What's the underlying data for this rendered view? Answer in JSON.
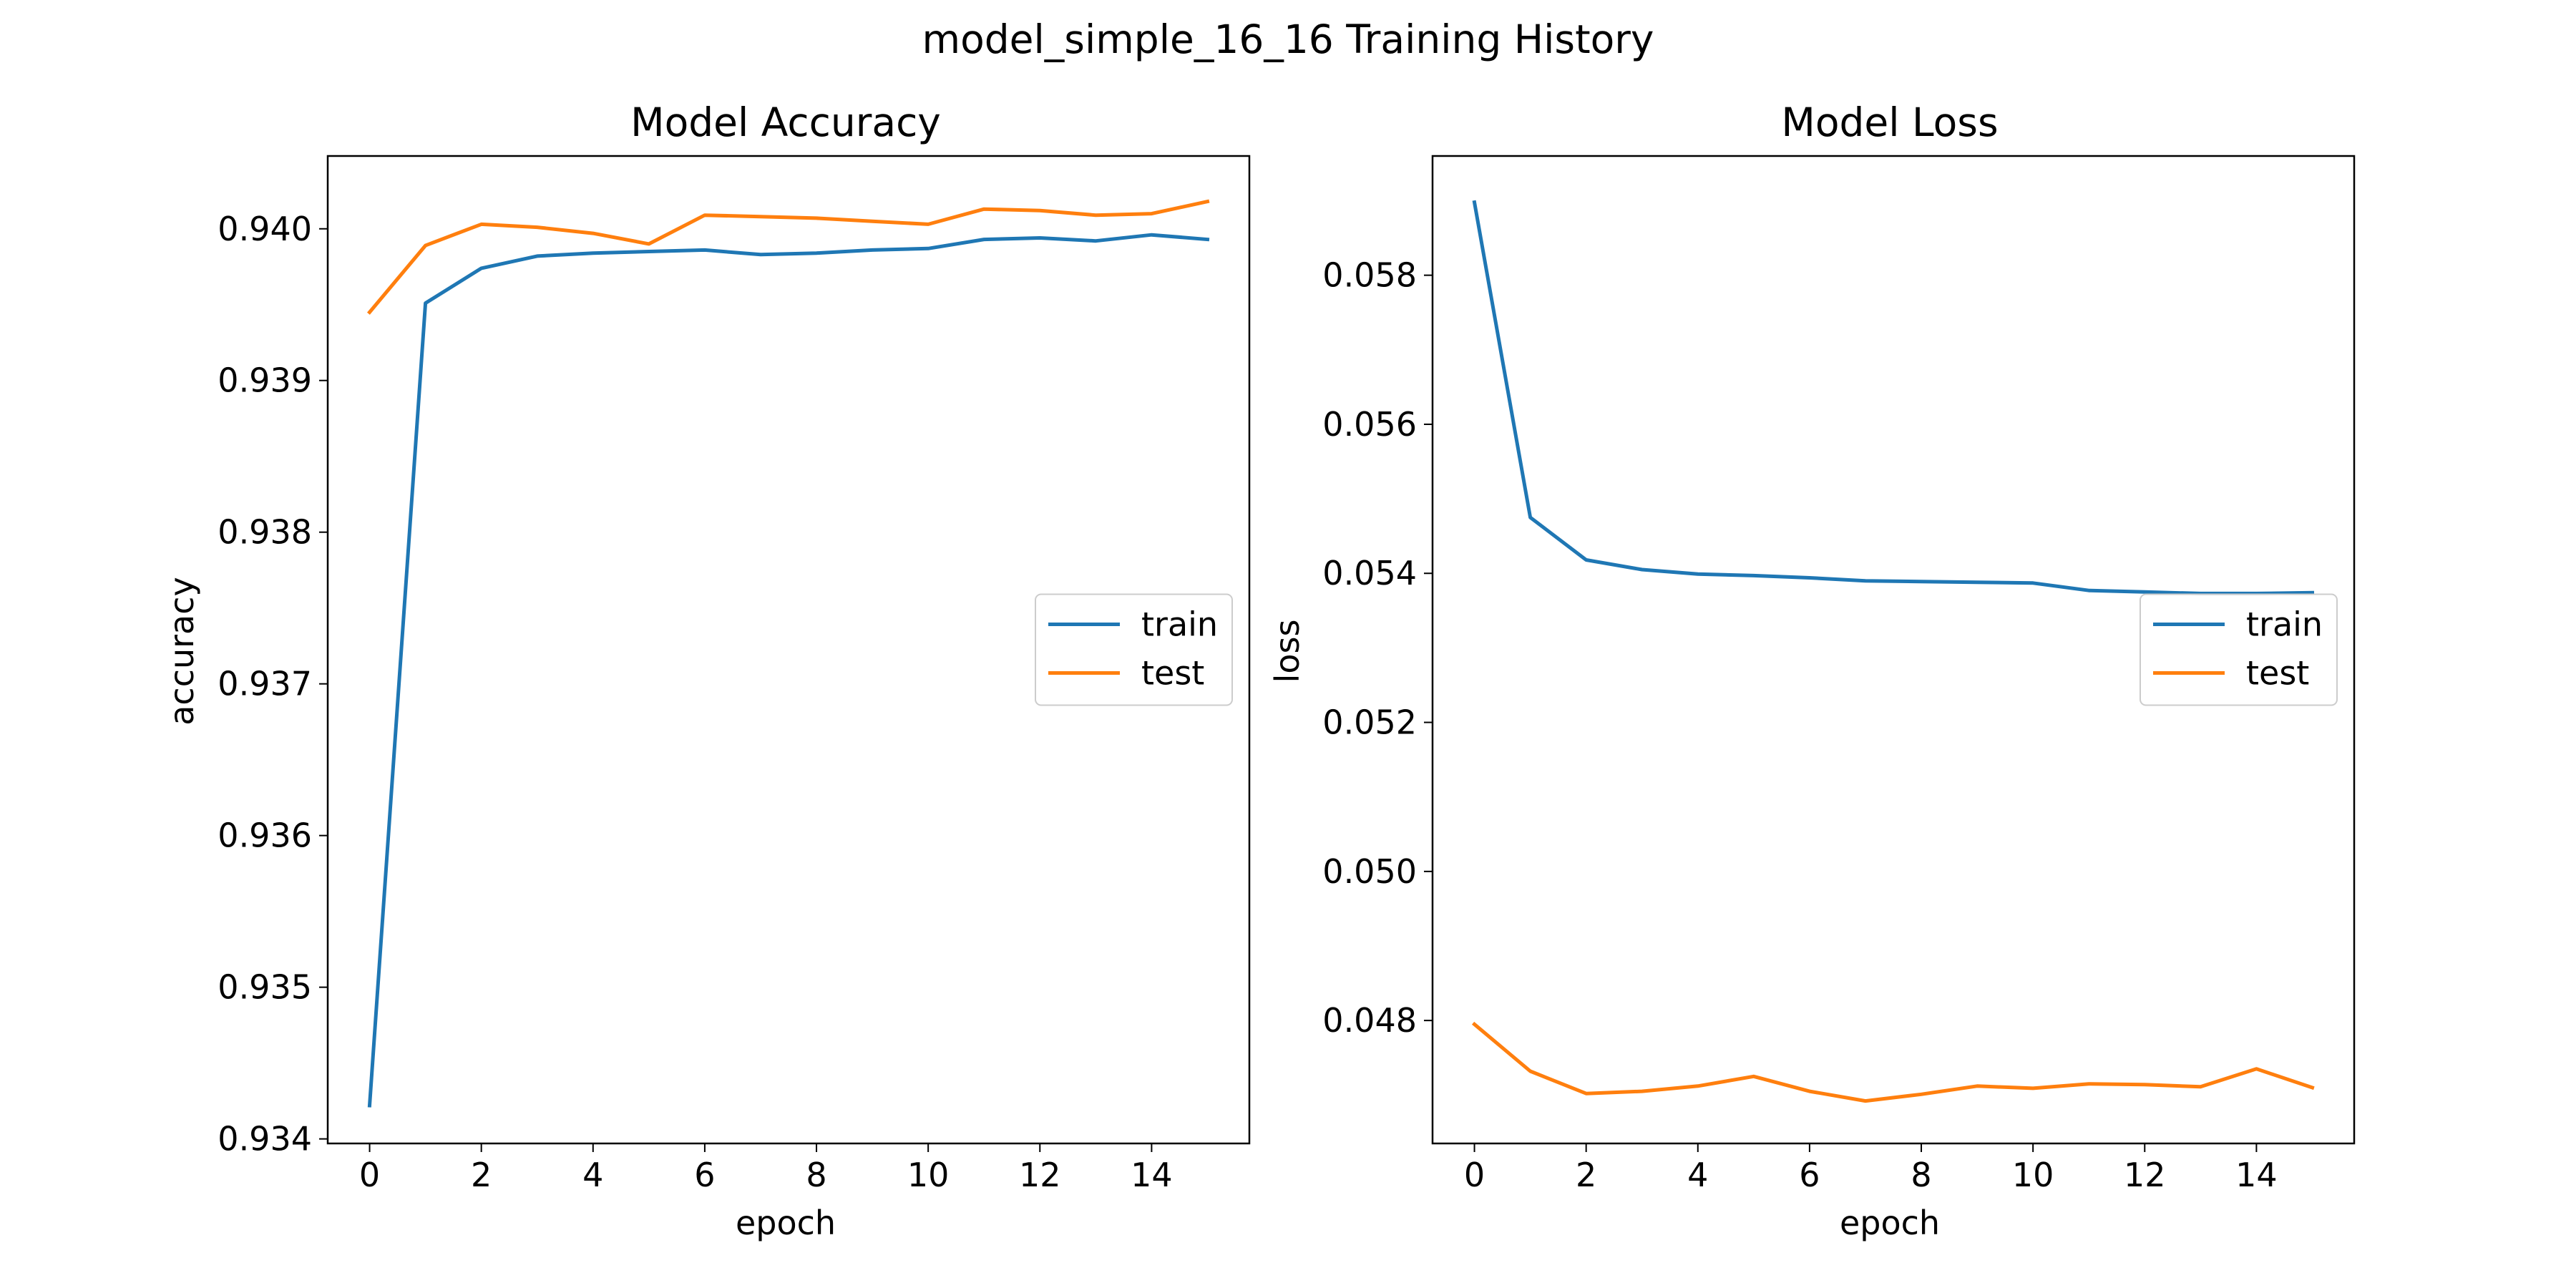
{
  "figure": {
    "suptitle": "model_simple_16_16 Training History"
  },
  "chart_data": [
    {
      "type": "line",
      "title": "Model Accuracy",
      "xlabel": "epoch",
      "ylabel": "accuracy",
      "x": [
        0,
        1,
        2,
        3,
        4,
        5,
        6,
        7,
        8,
        9,
        10,
        11,
        12,
        13,
        14,
        15
      ],
      "xlim": [
        -0.75,
        15.75
      ],
      "ylim": [
        0.93397,
        0.94048
      ],
      "xticks": [
        0,
        2,
        4,
        6,
        8,
        10,
        12,
        14
      ],
      "xtick_labels": [
        "0",
        "2",
        "4",
        "6",
        "8",
        "10",
        "12",
        "14"
      ],
      "yticks": [
        0.934,
        0.935,
        0.936,
        0.937,
        0.938,
        0.939,
        0.94
      ],
      "ytick_labels": [
        "0.934",
        "0.935",
        "0.936",
        "0.937",
        "0.938",
        "0.939",
        "0.940"
      ],
      "legend_placement": "center-right",
      "grid": false,
      "series": [
        {
          "name": "train",
          "color": "#1f77b4",
          "values": [
            0.93422,
            0.93951,
            0.93974,
            0.93982,
            0.93984,
            0.93985,
            0.93986,
            0.93983,
            0.93984,
            0.93986,
            0.93987,
            0.93993,
            0.93994,
            0.93992,
            0.93996,
            0.93993
          ]
        },
        {
          "name": "test",
          "color": "#ff7f0e",
          "values": [
            0.93945,
            0.93989,
            0.94003,
            0.94001,
            0.93997,
            0.9399,
            0.94009,
            0.94008,
            0.94007,
            0.94005,
            0.94003,
            0.94013,
            0.94012,
            0.94009,
            0.9401,
            0.94018
          ]
        }
      ]
    },
    {
      "type": "line",
      "title": "Model Loss",
      "xlabel": "epoch",
      "ylabel": "loss",
      "x": [
        0,
        1,
        2,
        3,
        4,
        5,
        6,
        7,
        8,
        9,
        10,
        11,
        12,
        13,
        14,
        15
      ],
      "xlim": [
        -0.75,
        15.75
      ],
      "ylim": [
        0.04635,
        0.0596
      ],
      "xticks": [
        0,
        2,
        4,
        6,
        8,
        10,
        12,
        14
      ],
      "xtick_labels": [
        "0",
        "2",
        "4",
        "6",
        "8",
        "10",
        "12",
        "14"
      ],
      "yticks": [
        0.048,
        0.05,
        0.052,
        0.054,
        0.056,
        0.058
      ],
      "ytick_labels": [
        "0.048",
        "0.050",
        "0.052",
        "0.054",
        "0.056",
        "0.058"
      ],
      "legend_placement": "center-right",
      "grid": false,
      "series": [
        {
          "name": "train",
          "color": "#1f77b4",
          "values": [
            0.05898,
            0.05475,
            0.05418,
            0.05405,
            0.05399,
            0.05397,
            0.05394,
            0.0539,
            0.05389,
            0.05388,
            0.05387,
            0.05377,
            0.05375,
            0.05373,
            0.05373,
            0.05374
          ]
        },
        {
          "name": "test",
          "color": "#ff7f0e",
          "values": [
            0.04795,
            0.04732,
            0.04702,
            0.04705,
            0.04712,
            0.04725,
            0.04705,
            0.04692,
            0.04701,
            0.04712,
            0.04709,
            0.04715,
            0.04714,
            0.04711,
            0.04735,
            0.0471
          ]
        }
      ]
    }
  ]
}
